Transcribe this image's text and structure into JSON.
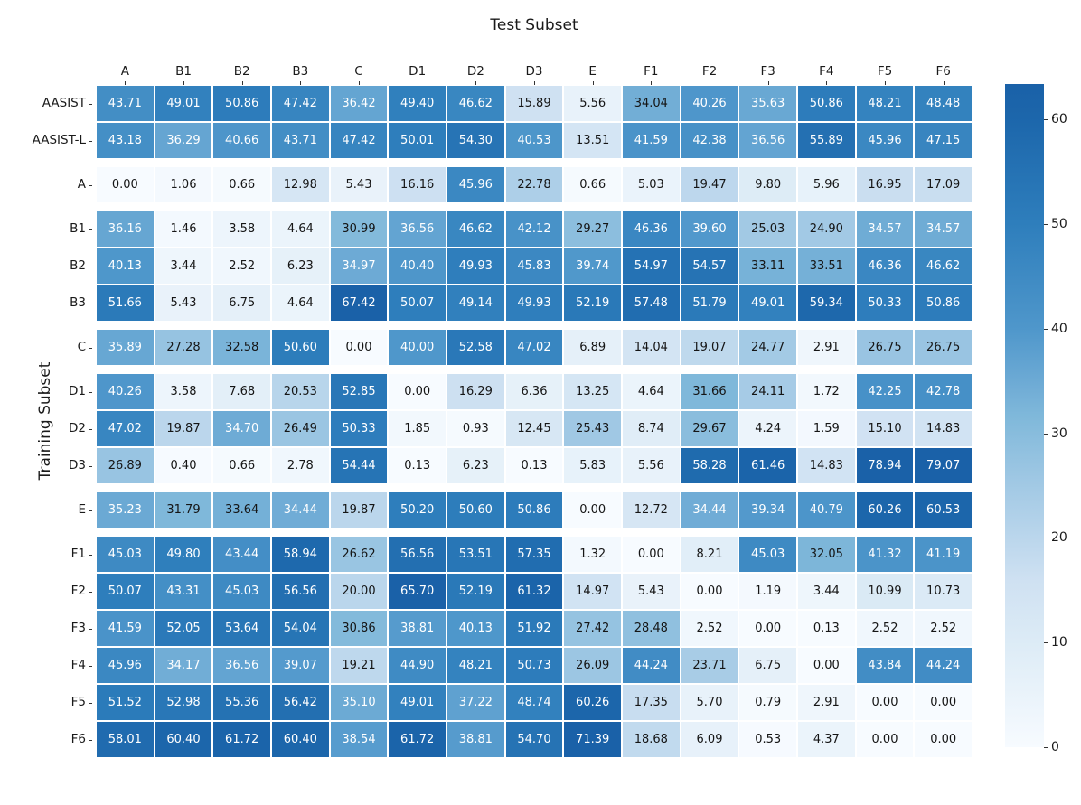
{
  "chart_data": {
    "type": "heatmap",
    "title": "Test Subset",
    "ylabel": "Training Subset",
    "colormap": "Blues",
    "scale": {
      "vmin": 0,
      "vmax": 63.4
    },
    "legend_position": "right-colorbar",
    "colorbar_ticks": [
      0,
      10,
      20,
      30,
      40,
      50,
      60
    ],
    "columns": [
      "A",
      "B1",
      "B2",
      "B3",
      "C",
      "D1",
      "D2",
      "D3",
      "E",
      "F1",
      "F2",
      "F3",
      "F4",
      "F5",
      "F6"
    ],
    "rows": [
      "AASIST",
      "AASIST-L",
      "A",
      "B1",
      "B2",
      "B3",
      "C",
      "D1",
      "D2",
      "D3",
      "E",
      "F1",
      "F2",
      "F3",
      "F4",
      "F5",
      "F6"
    ],
    "row_group_breaks_after": [
      1,
      2,
      5,
      6,
      9,
      10
    ],
    "values": [
      [
        43.71,
        49.01,
        50.86,
        47.42,
        36.42,
        49.4,
        46.62,
        15.89,
        5.56,
        34.04,
        40.26,
        35.63,
        50.86,
        48.21,
        48.48
      ],
      [
        43.18,
        36.29,
        40.66,
        43.71,
        47.42,
        50.01,
        54.3,
        40.53,
        13.51,
        41.59,
        42.38,
        36.56,
        55.89,
        45.96,
        47.15
      ],
      [
        0.0,
        1.06,
        0.66,
        12.98,
        5.43,
        16.16,
        45.96,
        22.78,
        0.66,
        5.03,
        19.47,
        9.8,
        5.96,
        16.95,
        17.09
      ],
      [
        36.16,
        1.46,
        3.58,
        4.64,
        30.99,
        36.56,
        46.62,
        42.12,
        29.27,
        46.36,
        39.6,
        25.03,
        24.9,
        34.57,
        34.57
      ],
      [
        40.13,
        3.44,
        2.52,
        6.23,
        34.97,
        40.4,
        49.93,
        45.83,
        39.74,
        54.97,
        54.57,
        33.11,
        33.51,
        46.36,
        46.62
      ],
      [
        51.66,
        5.43,
        6.75,
        4.64,
        67.42,
        50.07,
        49.14,
        49.93,
        52.19,
        57.48,
        51.79,
        49.01,
        59.34,
        50.33,
        50.86
      ],
      [
        35.89,
        27.28,
        32.58,
        50.6,
        0.0,
        40.0,
        52.58,
        47.02,
        6.89,
        14.04,
        19.07,
        24.77,
        2.91,
        26.75,
        26.75
      ],
      [
        40.26,
        3.58,
        7.68,
        20.53,
        52.85,
        0.0,
        16.29,
        6.36,
        13.25,
        4.64,
        31.66,
        24.11,
        1.72,
        42.25,
        42.78
      ],
      [
        47.02,
        19.87,
        34.7,
        26.49,
        50.33,
        1.85,
        0.93,
        12.45,
        25.43,
        8.74,
        29.67,
        4.24,
        1.59,
        15.1,
        14.83
      ],
      [
        26.89,
        0.4,
        0.66,
        2.78,
        54.44,
        0.13,
        6.23,
        0.13,
        5.83,
        5.56,
        58.28,
        61.46,
        14.83,
        78.94,
        79.07
      ],
      [
        35.23,
        31.79,
        33.64,
        34.44,
        19.87,
        50.2,
        50.6,
        50.86,
        0.0,
        12.72,
        34.44,
        39.34,
        40.79,
        60.26,
        60.53
      ],
      [
        45.03,
        49.8,
        43.44,
        58.94,
        26.62,
        56.56,
        53.51,
        57.35,
        1.32,
        0.0,
        8.21,
        45.03,
        32.05,
        41.32,
        41.19
      ],
      [
        50.07,
        43.31,
        45.03,
        56.56,
        20.0,
        65.7,
        52.19,
        61.32,
        14.97,
        5.43,
        0.0,
        1.19,
        3.44,
        10.99,
        10.73
      ],
      [
        41.59,
        52.05,
        53.64,
        54.04,
        30.86,
        38.81,
        40.13,
        51.92,
        27.42,
        28.48,
        2.52,
        0.0,
        0.13,
        2.52,
        2.52
      ],
      [
        45.96,
        34.17,
        36.56,
        39.07,
        19.21,
        44.9,
        48.21,
        50.73,
        26.09,
        44.24,
        23.71,
        6.75,
        0.0,
        43.84,
        44.24
      ],
      [
        51.52,
        52.98,
        55.36,
        56.42,
        35.1,
        49.01,
        37.22,
        48.74,
        60.26,
        17.35,
        5.7,
        0.79,
        2.91,
        0.0,
        0.0
      ],
      [
        58.01,
        60.4,
        61.72,
        60.4,
        38.54,
        61.72,
        38.81,
        54.7,
        71.39,
        18.68,
        6.09,
        0.53,
        4.37,
        0.0,
        0.0
      ]
    ],
    "value_format": "0.00",
    "colors": {
      "low": "#f7fbff",
      "high": "#1a61a8",
      "cell_text_dark": "#151515",
      "cell_text_light": "#ffffff"
    }
  }
}
